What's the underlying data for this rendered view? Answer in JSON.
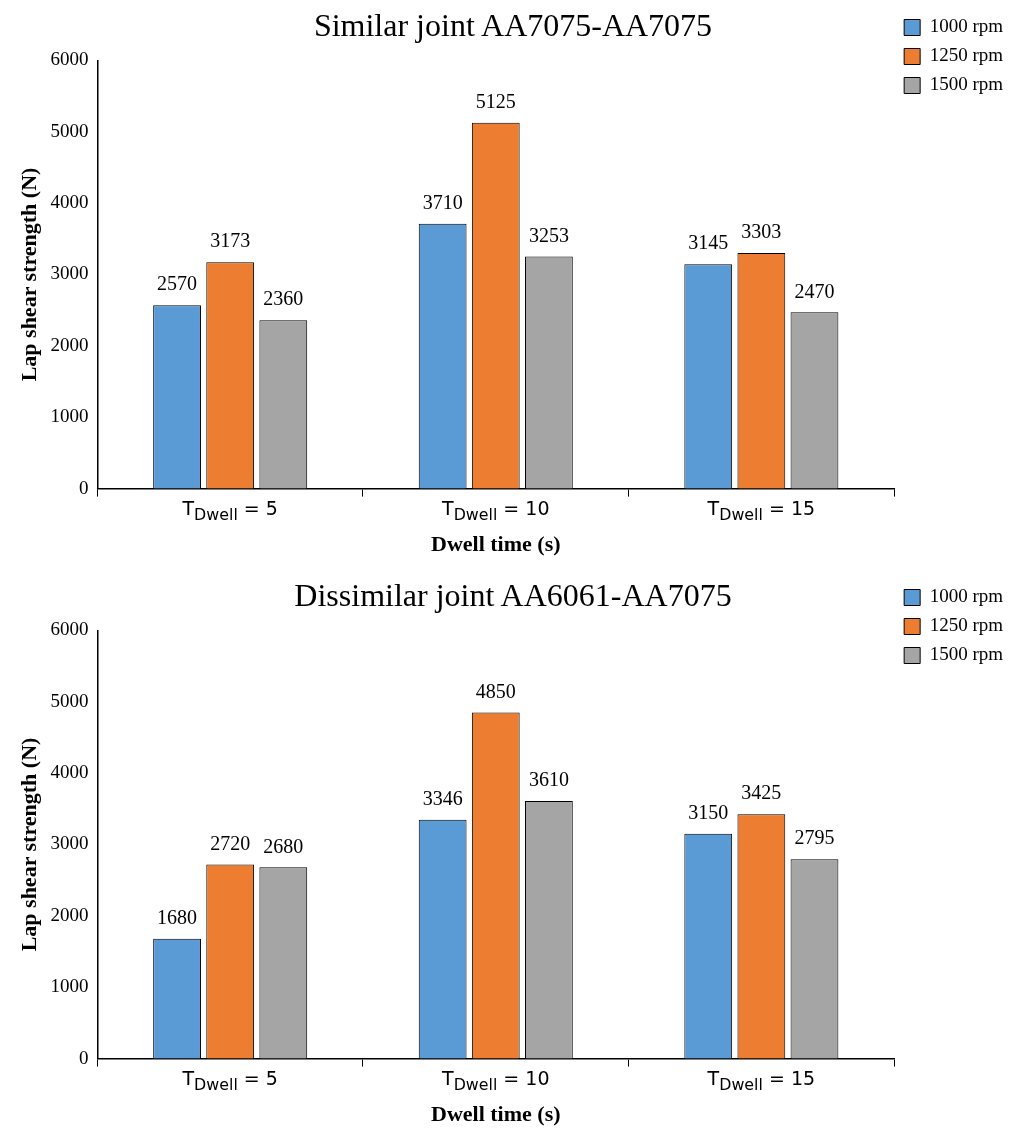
{
  "chart_data": [
    {
      "type": "bar",
      "title": "Similar joint AA7075-AA7075",
      "xlabel": "Dwell time (s)",
      "ylabel": "Lap shear strength (N)",
      "categories": [
        "T$_{Dwell}$ = 5",
        "T$_{Dwell}$ = 10",
        "T$_{Dwell}$ = 15"
      ],
      "series": [
        {
          "name": "1000 rpm",
          "color": "#5b9bd5",
          "values": [
            2570,
            3710,
            3145
          ]
        },
        {
          "name": "1250 rpm",
          "color": "#ed7d31",
          "values": [
            3173,
            5125,
            3303
          ]
        },
        {
          "name": "1500 rpm",
          "color": "#a5a5a5",
          "values": [
            2360,
            3253,
            2470
          ]
        }
      ],
      "ylim": [
        0,
        6000
      ],
      "yticks": [
        0,
        1000,
        2000,
        3000,
        4000,
        5000,
        6000
      ],
      "grid": false,
      "legend": "top right",
      "data_labels": true
    },
    {
      "type": "bar",
      "title": "Dissimilar joint AA6061-AA7075",
      "xlabel": "Dwell time (s)",
      "ylabel": "Lap shear strength (N)",
      "categories": [
        "T$_{Dwell}$ = 5",
        "T$_{Dwell}$ = 10",
        "T$_{Dwell}$ = 15"
      ],
      "series": [
        {
          "name": "1000 rpm",
          "color": "#5b9bd5",
          "values": [
            1680,
            3346,
            3150
          ]
        },
        {
          "name": "1250 rpm",
          "color": "#ed7d31",
          "values": [
            2720,
            4850,
            3425
          ]
        },
        {
          "name": "1500 rpm",
          "color": "#a5a5a5",
          "values": [
            2680,
            3610,
            2795
          ]
        }
      ],
      "ylim": [
        0,
        6000
      ],
      "yticks": [
        0,
        1000,
        2000,
        3000,
        4000,
        5000,
        6000
      ],
      "grid": false,
      "legend": "top right",
      "data_labels": true
    }
  ]
}
